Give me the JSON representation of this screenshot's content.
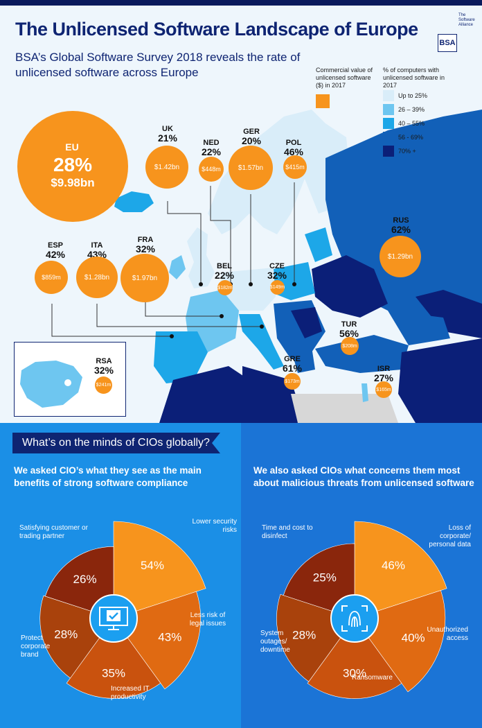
{
  "header": {
    "title": "The Unlicensed Software Landscape of Europe",
    "subtitle": "BSA’s Global Software Survey 2018 reveals the rate of unlicensed software across Europe",
    "logo_text": "The Software Alliance",
    "logo_mark": "BSA"
  },
  "legend": {
    "value_label": "Commercial value of unlicensed software ($) in 2017",
    "rate_label": "% of computers with unlicensed software in 2017",
    "items": [
      {
        "label": "Up to 25%",
        "color": "#d9edf9"
      },
      {
        "label": "26 – 39%",
        "color": "#6ec6f0"
      },
      {
        "label": "40 – 55%",
        "color": "#1da7e8"
      },
      {
        "label": "56 -  69%",
        "color": "#1260b8"
      },
      {
        "label": "70% +",
        "color": "#0b1f78"
      }
    ],
    "bubble_color": "#f7941d"
  },
  "chart_data": [
    {
      "type": "bubble",
      "title": "The Unlicensed Software Landscape of Europe",
      "series": [
        {
          "code": "EU",
          "rate": "28%",
          "value": "$9.98bn",
          "value_bn": 9.98
        },
        {
          "code": "UK",
          "rate": "21%",
          "value": "$1.42bn",
          "value_bn": 1.42
        },
        {
          "code": "NED",
          "rate": "22%",
          "value": "$448m",
          "value_bn": 0.448
        },
        {
          "code": "GER",
          "rate": "20%",
          "value": "$1.57bn",
          "value_bn": 1.57
        },
        {
          "code": "POL",
          "rate": "46%",
          "value": "$415m",
          "value_bn": 0.415
        },
        {
          "code": "ESP",
          "rate": "42%",
          "value": "$859m",
          "value_bn": 0.859
        },
        {
          "code": "ITA",
          "rate": "43%",
          "value": "$1.28bn",
          "value_bn": 1.28
        },
        {
          "code": "FRA",
          "rate": "32%",
          "value": "$1.97bn",
          "value_bn": 1.97
        },
        {
          "code": "BEL",
          "rate": "22%",
          "value": "$182m",
          "value_bn": 0.182
        },
        {
          "code": "CZE",
          "rate": "32%",
          "value": "$149m",
          "value_bn": 0.149
        },
        {
          "code": "RUS",
          "rate": "62%",
          "value": "$1.29bn",
          "value_bn": 1.29
        },
        {
          "code": "TUR",
          "rate": "56%",
          "value": "$208m",
          "value_bn": 0.208
        },
        {
          "code": "GRE",
          "rate": "61%",
          "value": "$173m",
          "value_bn": 0.173
        },
        {
          "code": "ISR",
          "rate": "27%",
          "value": "$165m",
          "value_bn": 0.165
        },
        {
          "code": "RSA",
          "rate": "32%",
          "value": "$241m",
          "value_bn": 0.241
        }
      ]
    },
    {
      "type": "pie",
      "title": "We asked CIO’s what they see as the main benefits of strong software compliance",
      "slices": [
        {
          "label": "Lower security risks",
          "value": 54
        },
        {
          "label": "Less risk of legal issues",
          "value": 43
        },
        {
          "label": "Increased IT productivity",
          "value": 35
        },
        {
          "label": "Protect corporate brand",
          "value": 28
        },
        {
          "label": "Satisfying customer or trading partner",
          "value": 26
        }
      ]
    },
    {
      "type": "pie",
      "title": "We also asked CIOs what concerns them most about malicious threats from unlicensed software",
      "slices": [
        {
          "label": "Loss of corporate/ personal data",
          "value": 46
        },
        {
          "label": "Unauthorized access",
          "value": 40
        },
        {
          "label": "Ransomware",
          "value": 30
        },
        {
          "label": "System outages/ downtime",
          "value": 28
        },
        {
          "label": "Time and cost to disinfect",
          "value": 25
        }
      ]
    }
  ],
  "cio": {
    "heading": "What’s on the minds of CIOs globally?",
    "left_question": "We asked CIO’s what they see as the main benefits of strong software compliance",
    "right_question": "We also asked CIOs what concerns them most about malicious threats from unlicensed software",
    "left_icon": "monitor-checkmark-icon",
    "right_icon": "fingerprint-scan-icon"
  }
}
